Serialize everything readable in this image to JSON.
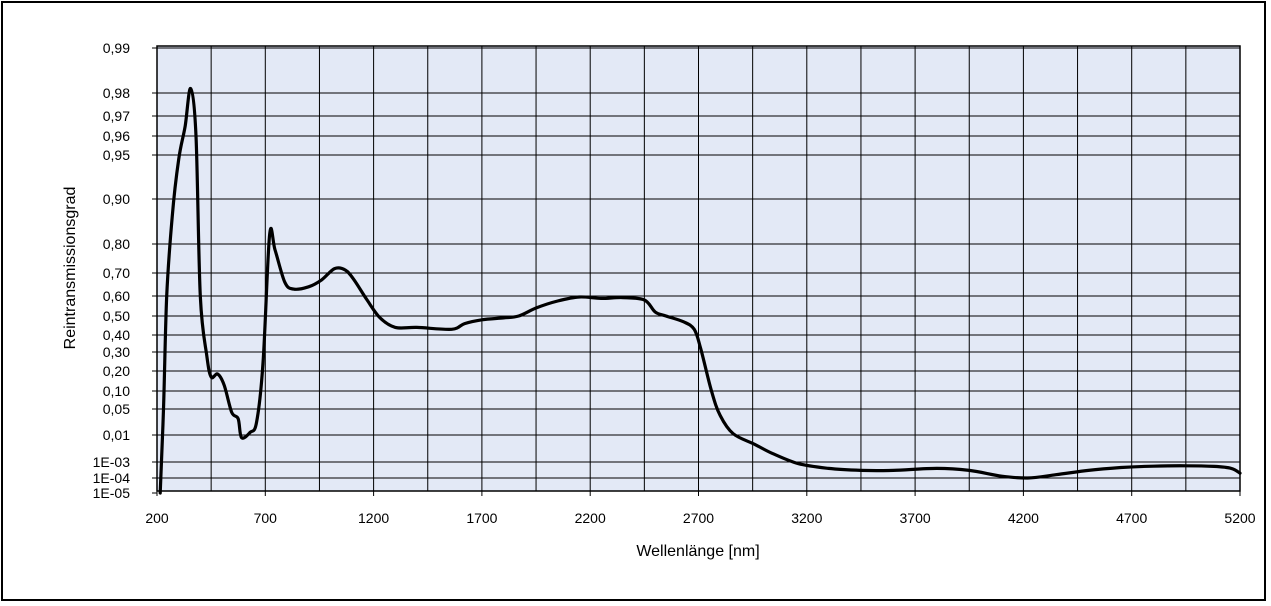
{
  "chart_data": {
    "type": "line",
    "xlabel": "Wellenlänge [nm]",
    "ylabel": "Reintransmissionsgrad",
    "xlim": [
      200,
      5200
    ],
    "x_ticks": [
      200,
      700,
      1200,
      1700,
      2200,
      2700,
      3200,
      3700,
      4200,
      4700,
      5200
    ],
    "x_tick_labels": [
      "200",
      "700",
      "1200",
      "1700",
      "2200",
      "2700",
      "3200",
      "3700",
      "4200",
      "4700",
      "5200"
    ],
    "y_scale": "nonlinear (tick labels unevenly spaced)",
    "y_tick_labels": [
      "0,99",
      "0,98",
      "0,97",
      "0,96",
      "0,95",
      "0,90",
      "0,80",
      "0,70",
      "0,60",
      "0,50",
      "0,40",
      "0,30",
      "0,20",
      "0,10",
      "0,05",
      "0,01",
      "1E-03",
      "1E-04",
      "1E-05"
    ],
    "grid": true,
    "colors": {
      "plot_background": "#e3e9f6",
      "grid": "#000000",
      "line": "#000000"
    },
    "series": [
      {
        "points": [
          [
            215,
            1e-05
          ],
          [
            230,
            0.05
          ],
          [
            245,
            0.6
          ],
          [
            270,
            0.86
          ],
          [
            300,
            0.945
          ],
          [
            330,
            0.965
          ],
          [
            355,
            0.981
          ],
          [
            380,
            0.96
          ],
          [
            400,
            0.6
          ],
          [
            430,
            0.28
          ],
          [
            450,
            0.17
          ],
          [
            480,
            0.185
          ],
          [
            510,
            0.13
          ],
          [
            545,
            0.045
          ],
          [
            575,
            0.035
          ],
          [
            590,
            0.008
          ],
          [
            630,
            0.014
          ],
          [
            660,
            0.03
          ],
          [
            690,
            0.25
          ],
          [
            720,
            0.82
          ],
          [
            745,
            0.78
          ],
          [
            790,
            0.66
          ],
          [
            830,
            0.63
          ],
          [
            900,
            0.64
          ],
          [
            960,
            0.67
          ],
          [
            1020,
            0.715
          ],
          [
            1070,
            0.71
          ],
          [
            1110,
            0.67
          ],
          [
            1170,
            0.58
          ],
          [
            1230,
            0.49
          ],
          [
            1300,
            0.44
          ],
          [
            1400,
            0.44
          ],
          [
            1560,
            0.43
          ],
          [
            1620,
            0.46
          ],
          [
            1700,
            0.48
          ],
          [
            1800,
            0.49
          ],
          [
            1870,
            0.5
          ],
          [
            1950,
            0.54
          ],
          [
            2050,
            0.575
          ],
          [
            2150,
            0.595
          ],
          [
            2250,
            0.588
          ],
          [
            2350,
            0.592
          ],
          [
            2450,
            0.58
          ],
          [
            2500,
            0.52
          ],
          [
            2550,
            0.5
          ],
          [
            2630,
            0.47
          ],
          [
            2680,
            0.43
          ],
          [
            2710,
            0.32
          ],
          [
            2760,
            0.1
          ],
          [
            2800,
            0.04
          ],
          [
            2860,
            0.012
          ],
          [
            2960,
            0.0045
          ],
          [
            3040,
            0.0021
          ],
          [
            3160,
            0.0008
          ],
          [
            3300,
            0.0004
          ],
          [
            3450,
            0.0003
          ],
          [
            3600,
            0.0003
          ],
          [
            3800,
            0.0004
          ],
          [
            3950,
            0.0003
          ],
          [
            4100,
            0.00013
          ],
          [
            4220,
            0.0001
          ],
          [
            4350,
            0.00016
          ],
          [
            4500,
            0.0003
          ],
          [
            4650,
            0.00045
          ],
          [
            4800,
            0.00055
          ],
          [
            4950,
            0.00058
          ],
          [
            5080,
            0.00053
          ],
          [
            5160,
            0.0004
          ],
          [
            5200,
            0.0002
          ]
        ]
      }
    ]
  }
}
